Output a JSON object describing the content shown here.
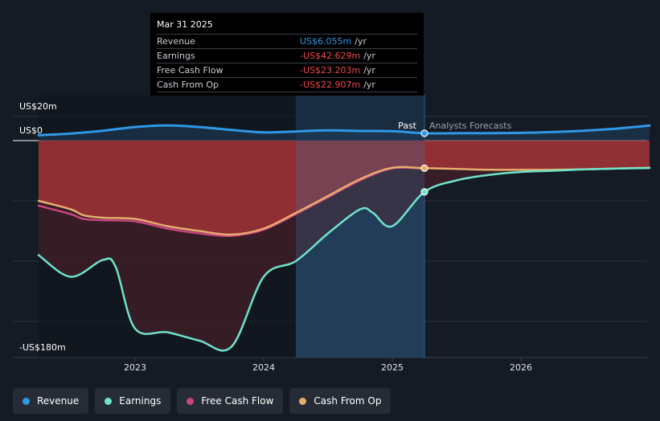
{
  "chart_data": {
    "type": "line",
    "y_top_label": "US$20m",
    "y_zero_label": "US$0",
    "y_bottom_label": "-US$180m",
    "ylim": [
      -180,
      20
    ],
    "x_ticks": [
      "2023",
      "2024",
      "2025",
      "2026"
    ],
    "xlim": [
      2022.25,
      2027.0
    ],
    "divider_x": 2025.25,
    "forecast_region": [
      2024.25,
      2025.25
    ],
    "past_label": "Past",
    "forecast_label": "Analysts Forecasts",
    "series": [
      {
        "name": "Revenue",
        "color": "#2f98e6",
        "x": [
          2022.25,
          2022.5,
          2022.75,
          2023.0,
          2023.25,
          2023.5,
          2023.75,
          2024.0,
          2024.25,
          2024.5,
          2024.75,
          2025.0,
          2025.25,
          2025.5,
          2025.75,
          2026.0,
          2026.25,
          2026.5,
          2026.75,
          2027.0
        ],
        "y": [
          4.5,
          5.9,
          8.2,
          11.3,
          12.6,
          11.3,
          8.8,
          6.8,
          7.6,
          8.5,
          8.0,
          7.8,
          6.1,
          6.1,
          6.2,
          6.4,
          7.1,
          8.3,
          10.0,
          12.5
        ]
      },
      {
        "name": "Earnings",
        "color": "#6fe3cc",
        "x": [
          2022.25,
          2022.5,
          2022.75,
          2022.85,
          2023.0,
          2023.25,
          2023.5,
          2023.75,
          2024.0,
          2024.25,
          2024.5,
          2024.75,
          2024.85,
          2025.0,
          2025.25,
          2025.5,
          2025.75,
          2026.0,
          2026.25,
          2026.5,
          2026.75,
          2027.0
        ],
        "y": [
          -95,
          -113,
          -99,
          -105,
          -156,
          -159,
          -166,
          -171,
          -113,
          -100,
          -77,
          -57,
          -60,
          -71,
          -42.6,
          -33,
          -28.5,
          -26,
          -25,
          -23.8,
          -23.2,
          -22.7
        ]
      },
      {
        "name": "Free Cash Flow",
        "color": "#c9457f",
        "x": [
          2022.25,
          2022.5,
          2022.6,
          2022.75,
          2023.0,
          2023.25,
          2023.5,
          2023.75,
          2024.0,
          2024.25,
          2024.5,
          2024.75,
          2025.0,
          2025.25
        ],
        "y": [
          -54,
          -61,
          -65,
          -66,
          -67,
          -73,
          -77,
          -79,
          -74,
          -61,
          -47,
          -33,
          -23,
          -23.2
        ]
      },
      {
        "name": "Cash From Op",
        "color": "#e8ad6e",
        "x": [
          2022.25,
          2022.5,
          2022.6,
          2022.75,
          2023.0,
          2023.25,
          2023.5,
          2023.75,
          2024.0,
          2024.25,
          2024.5,
          2024.75,
          2025.0,
          2025.25,
          2025.5,
          2025.75,
          2026.0,
          2026.25,
          2026.5,
          2026.75,
          2027.0
        ],
        "y": [
          -50,
          -57,
          -62,
          -64,
          -65,
          -71,
          -75,
          -78,
          -73,
          -60,
          -46,
          -32,
          -22.5,
          -22.9,
          -23.5,
          -24.2,
          -24.3,
          -24.2,
          -23.8,
          -23.2,
          -22.5
        ]
      }
    ]
  },
  "tooltip": {
    "date": "Mar 31 2025",
    "rows": [
      {
        "label": "Revenue",
        "value": "US$6.055m",
        "unit": "/yr",
        "color": "#2f98e6"
      },
      {
        "label": "Earnings",
        "value": "-US$42.629m",
        "unit": "/yr",
        "color": "#f0464b"
      },
      {
        "label": "Free Cash Flow",
        "value": "-US$23.203m",
        "unit": "/yr",
        "color": "#f0464b"
      },
      {
        "label": "Cash From Op",
        "value": "-US$22.907m",
        "unit": "/yr",
        "color": "#f0464b"
      }
    ]
  },
  "legend": [
    {
      "label": "Revenue",
      "color": "#2f98e6"
    },
    {
      "label": "Earnings",
      "color": "#6fe3cc"
    },
    {
      "label": "Free Cash Flow",
      "color": "#c9457f"
    },
    {
      "label": "Cash From Op",
      "color": "#e8ad6e"
    }
  ]
}
